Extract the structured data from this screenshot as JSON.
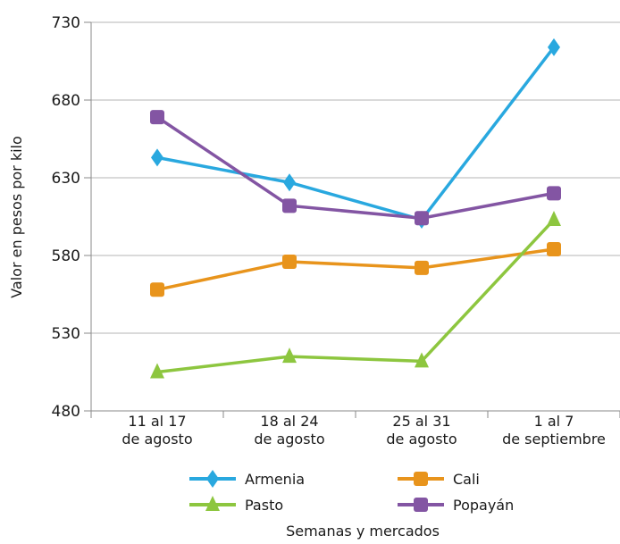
{
  "chart_data": {
    "type": "line",
    "categories": [
      [
        "11 al 17",
        "de agosto"
      ],
      [
        "18 al 24",
        "de agosto"
      ],
      [
        "25 al 31",
        "de agosto"
      ],
      [
        "1 al 7",
        "de septiembre"
      ]
    ],
    "series": [
      {
        "name": "Armenia",
        "values": [
          643,
          627,
          603,
          714
        ],
        "color": "#29a8df",
        "marker": "diamond"
      },
      {
        "name": "Cali",
        "values": [
          558,
          576,
          572,
          584
        ],
        "color": "#e8941c",
        "marker": "square"
      },
      {
        "name": "Pasto",
        "values": [
          505,
          515,
          512,
          603
        ],
        "color": "#8dc63f",
        "marker": "triangle"
      },
      {
        "name": "Popayán",
        "values": [
          669,
          612,
          604,
          620
        ],
        "color": "#8355a3",
        "marker": "square"
      }
    ],
    "xlabel": "Semanas y mercados",
    "ylabel": "Valor en pesos por kilo",
    "ylim": [
      480,
      730
    ],
    "yticks": [
      480,
      530,
      580,
      630,
      680,
      730
    ],
    "grid": true,
    "legend_position": "bottom"
  }
}
